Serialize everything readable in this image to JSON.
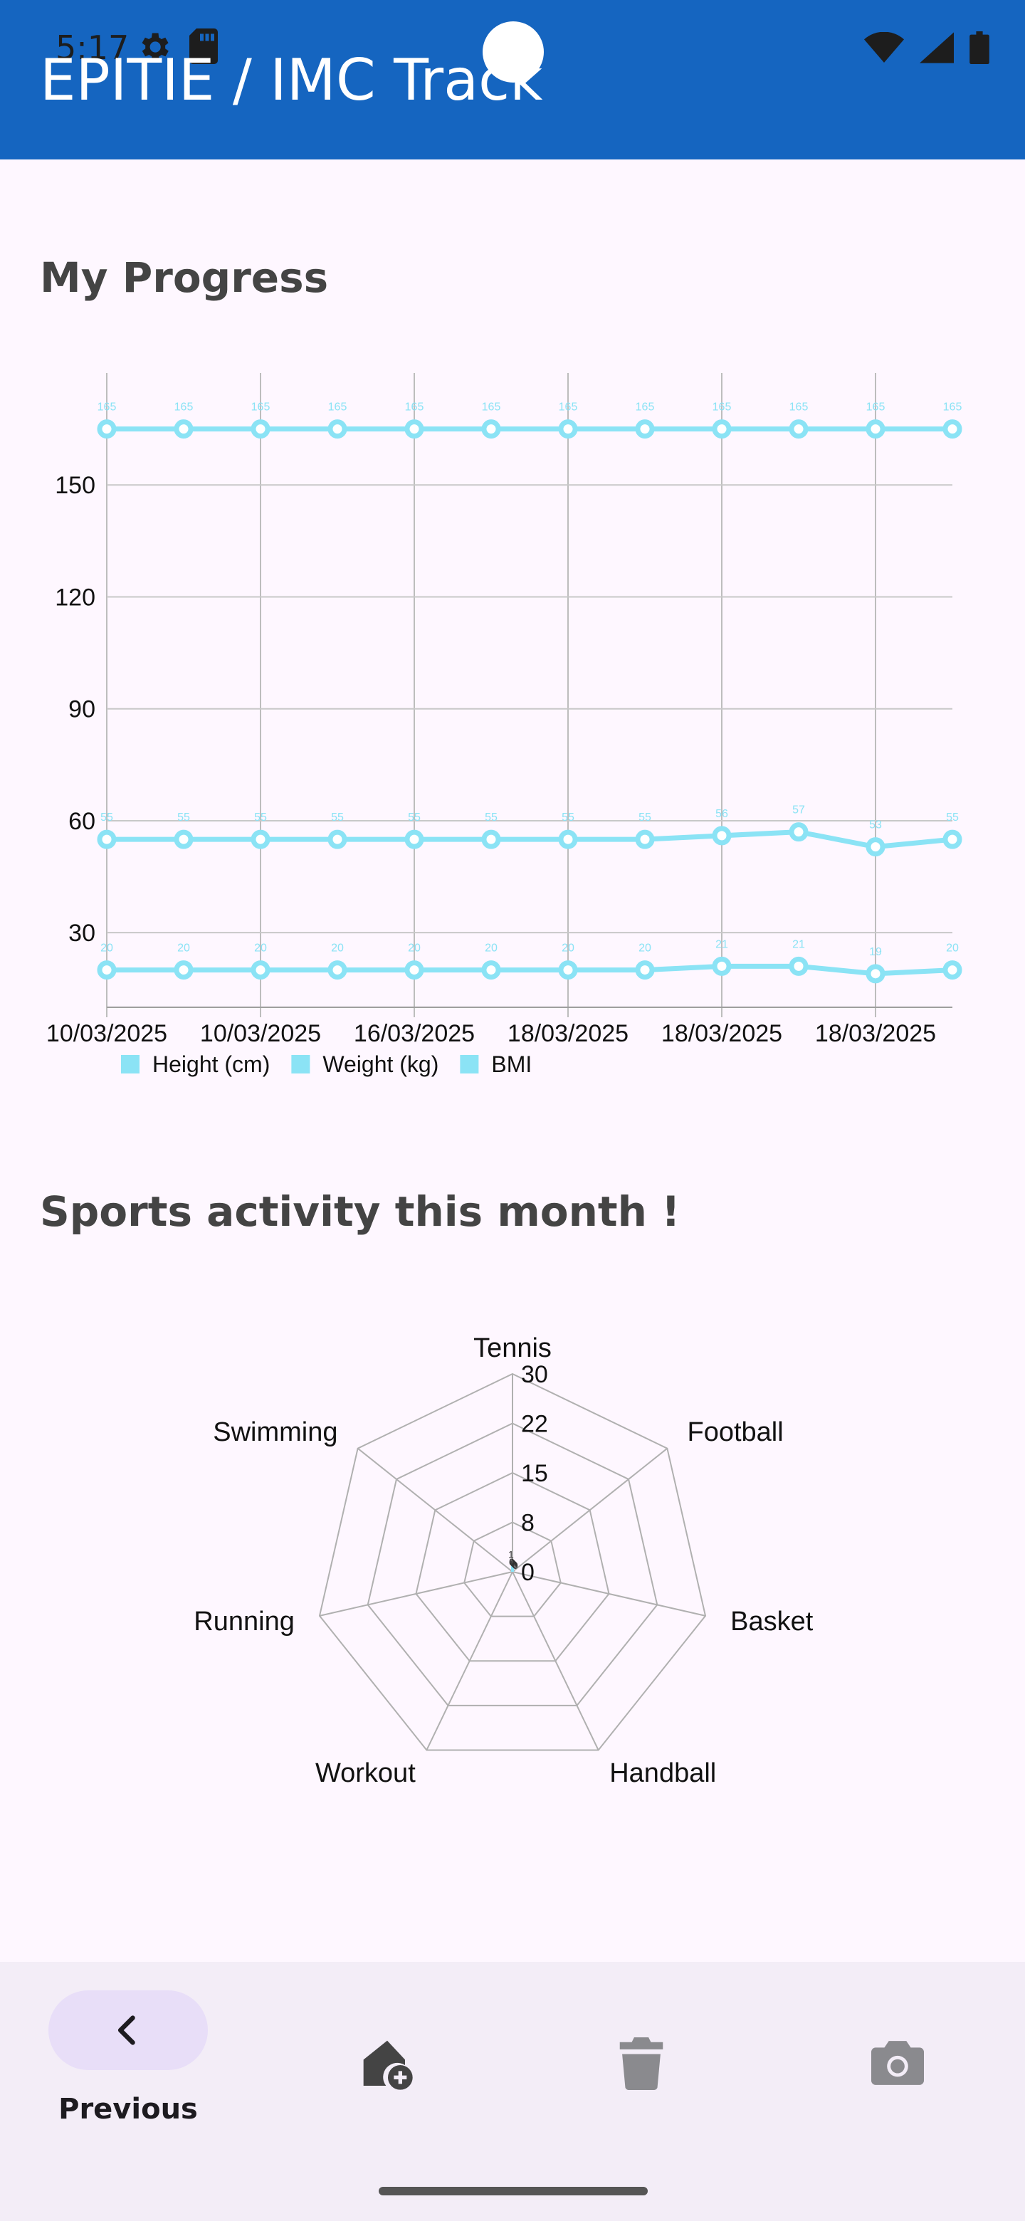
{
  "status_bar": {
    "time": "5:17"
  },
  "app_bar": {
    "title": "EPITIE / IMC Track"
  },
  "progress": {
    "title": "My Progress",
    "chart_data": {
      "type": "line",
      "x": [
        "10/03/2025",
        "10/03/2025",
        "10/03/2025",
        "10/03/2025",
        "16/03/2025",
        "16/03/2025",
        "18/03/2025",
        "18/03/2025",
        "18/03/2025",
        "18/03/2025",
        "18/03/2025",
        "18/03/2025"
      ],
      "x_tick_labels": [
        "10/03/2025",
        "10/03/2025",
        "16/03/2025",
        "18/03/2025",
        "18/03/2025",
        "18/03/2025"
      ],
      "y_ticks": [
        30,
        60,
        90,
        120,
        150
      ],
      "ylim": [
        10,
        180
      ],
      "grid": true,
      "legend_position": "bottom-left",
      "series": [
        {
          "name": "Height (cm)",
          "color": "#8BE3F5",
          "values": [
            165,
            165,
            165,
            165,
            165,
            165,
            165,
            165,
            165,
            165,
            165,
            165
          ]
        },
        {
          "name": "Weight (kg)",
          "color": "#8BE3F5",
          "values": [
            55,
            55,
            55,
            55,
            55,
            55,
            55,
            55,
            56,
            57,
            53,
            55
          ]
        },
        {
          "name": "BMI",
          "color": "#8BE3F5",
          "values": [
            20,
            20,
            20,
            20,
            20,
            20,
            20,
            20,
            21,
            21,
            19,
            20
          ]
        }
      ]
    }
  },
  "sports": {
    "title": "Sports activity this month !",
    "chart_data": {
      "type": "radar",
      "axes": [
        "Tennis",
        "Football",
        "Basket",
        "Handball",
        "Workout",
        "Running",
        "Swimming"
      ],
      "tick_labels": [
        "0",
        "8",
        "15",
        "22",
        "30"
      ],
      "rmax": 30,
      "series": [
        {
          "color": "#8BE3F5",
          "values": [
            1,
            0,
            0,
            0,
            0,
            0,
            0
          ],
          "value_labels": [
            "1",
            "0",
            "0",
            "0",
            "0",
            "0",
            "0"
          ]
        }
      ]
    }
  },
  "bottom_nav": {
    "previous_label": "Previous",
    "icons": [
      "chevron-left-icon",
      "home-add-icon",
      "trash-icon",
      "camera-icon"
    ]
  }
}
